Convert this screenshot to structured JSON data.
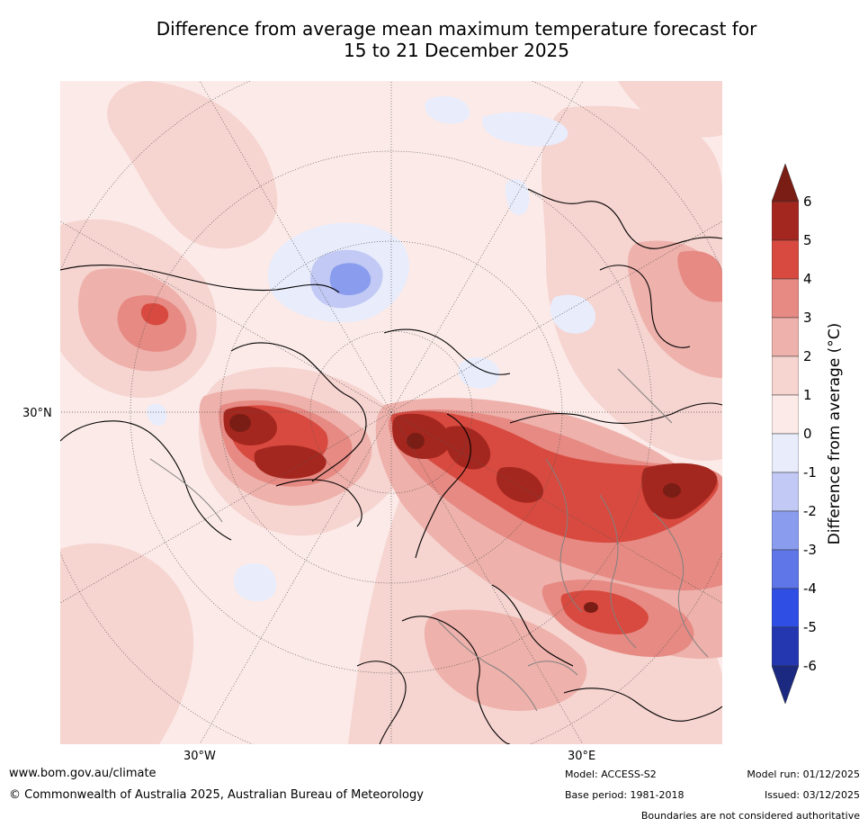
{
  "title_line1": "Difference from average mean maximum temperature forecast for",
  "title_line2": "15 to 21 December 2025",
  "map": {
    "lat_label": "30°N",
    "lon_labels": [
      "30°W",
      "30°E"
    ]
  },
  "legend": {
    "title": "Difference from average (°C)",
    "ticks": [
      "6",
      "5",
      "4",
      "3",
      "2",
      "1",
      "0",
      "-1",
      "-2",
      "-3",
      "-4",
      "-5",
      "-6"
    ],
    "colors": {
      "above_6": "#7a1d14",
      "5_to_6": "#a4271f",
      "4_to_5": "#d84a3f",
      "3_to_4": "#e68a83",
      "2_to_3": "#eeb1ab",
      "1_to_2": "#f6d4d0",
      "0_to_1": "#fbeae8",
      "m1_to_0": "#e8ecfb",
      "m2_to_m1": "#c1c9f4",
      "m3_to_m2": "#8a9cee",
      "m4_to_m3": "#5e76e8",
      "m5_to_m4": "#2e4ee4",
      "m6_to_m5": "#2437b0",
      "below_m6": "#1b2a80"
    }
  },
  "footer": {
    "website": "www.bom.gov.au/climate",
    "copyright": "© Commonwealth of Australia 2025, Australian Bureau of Meteorology",
    "model": "Model: ACCESS-S2",
    "base_period": "Base period: 1981-2018",
    "model_run": "Model run: 01/12/2025",
    "issued": "Issued: 03/12/2025",
    "disclaimer": "Boundaries are not considered authoritative"
  }
}
